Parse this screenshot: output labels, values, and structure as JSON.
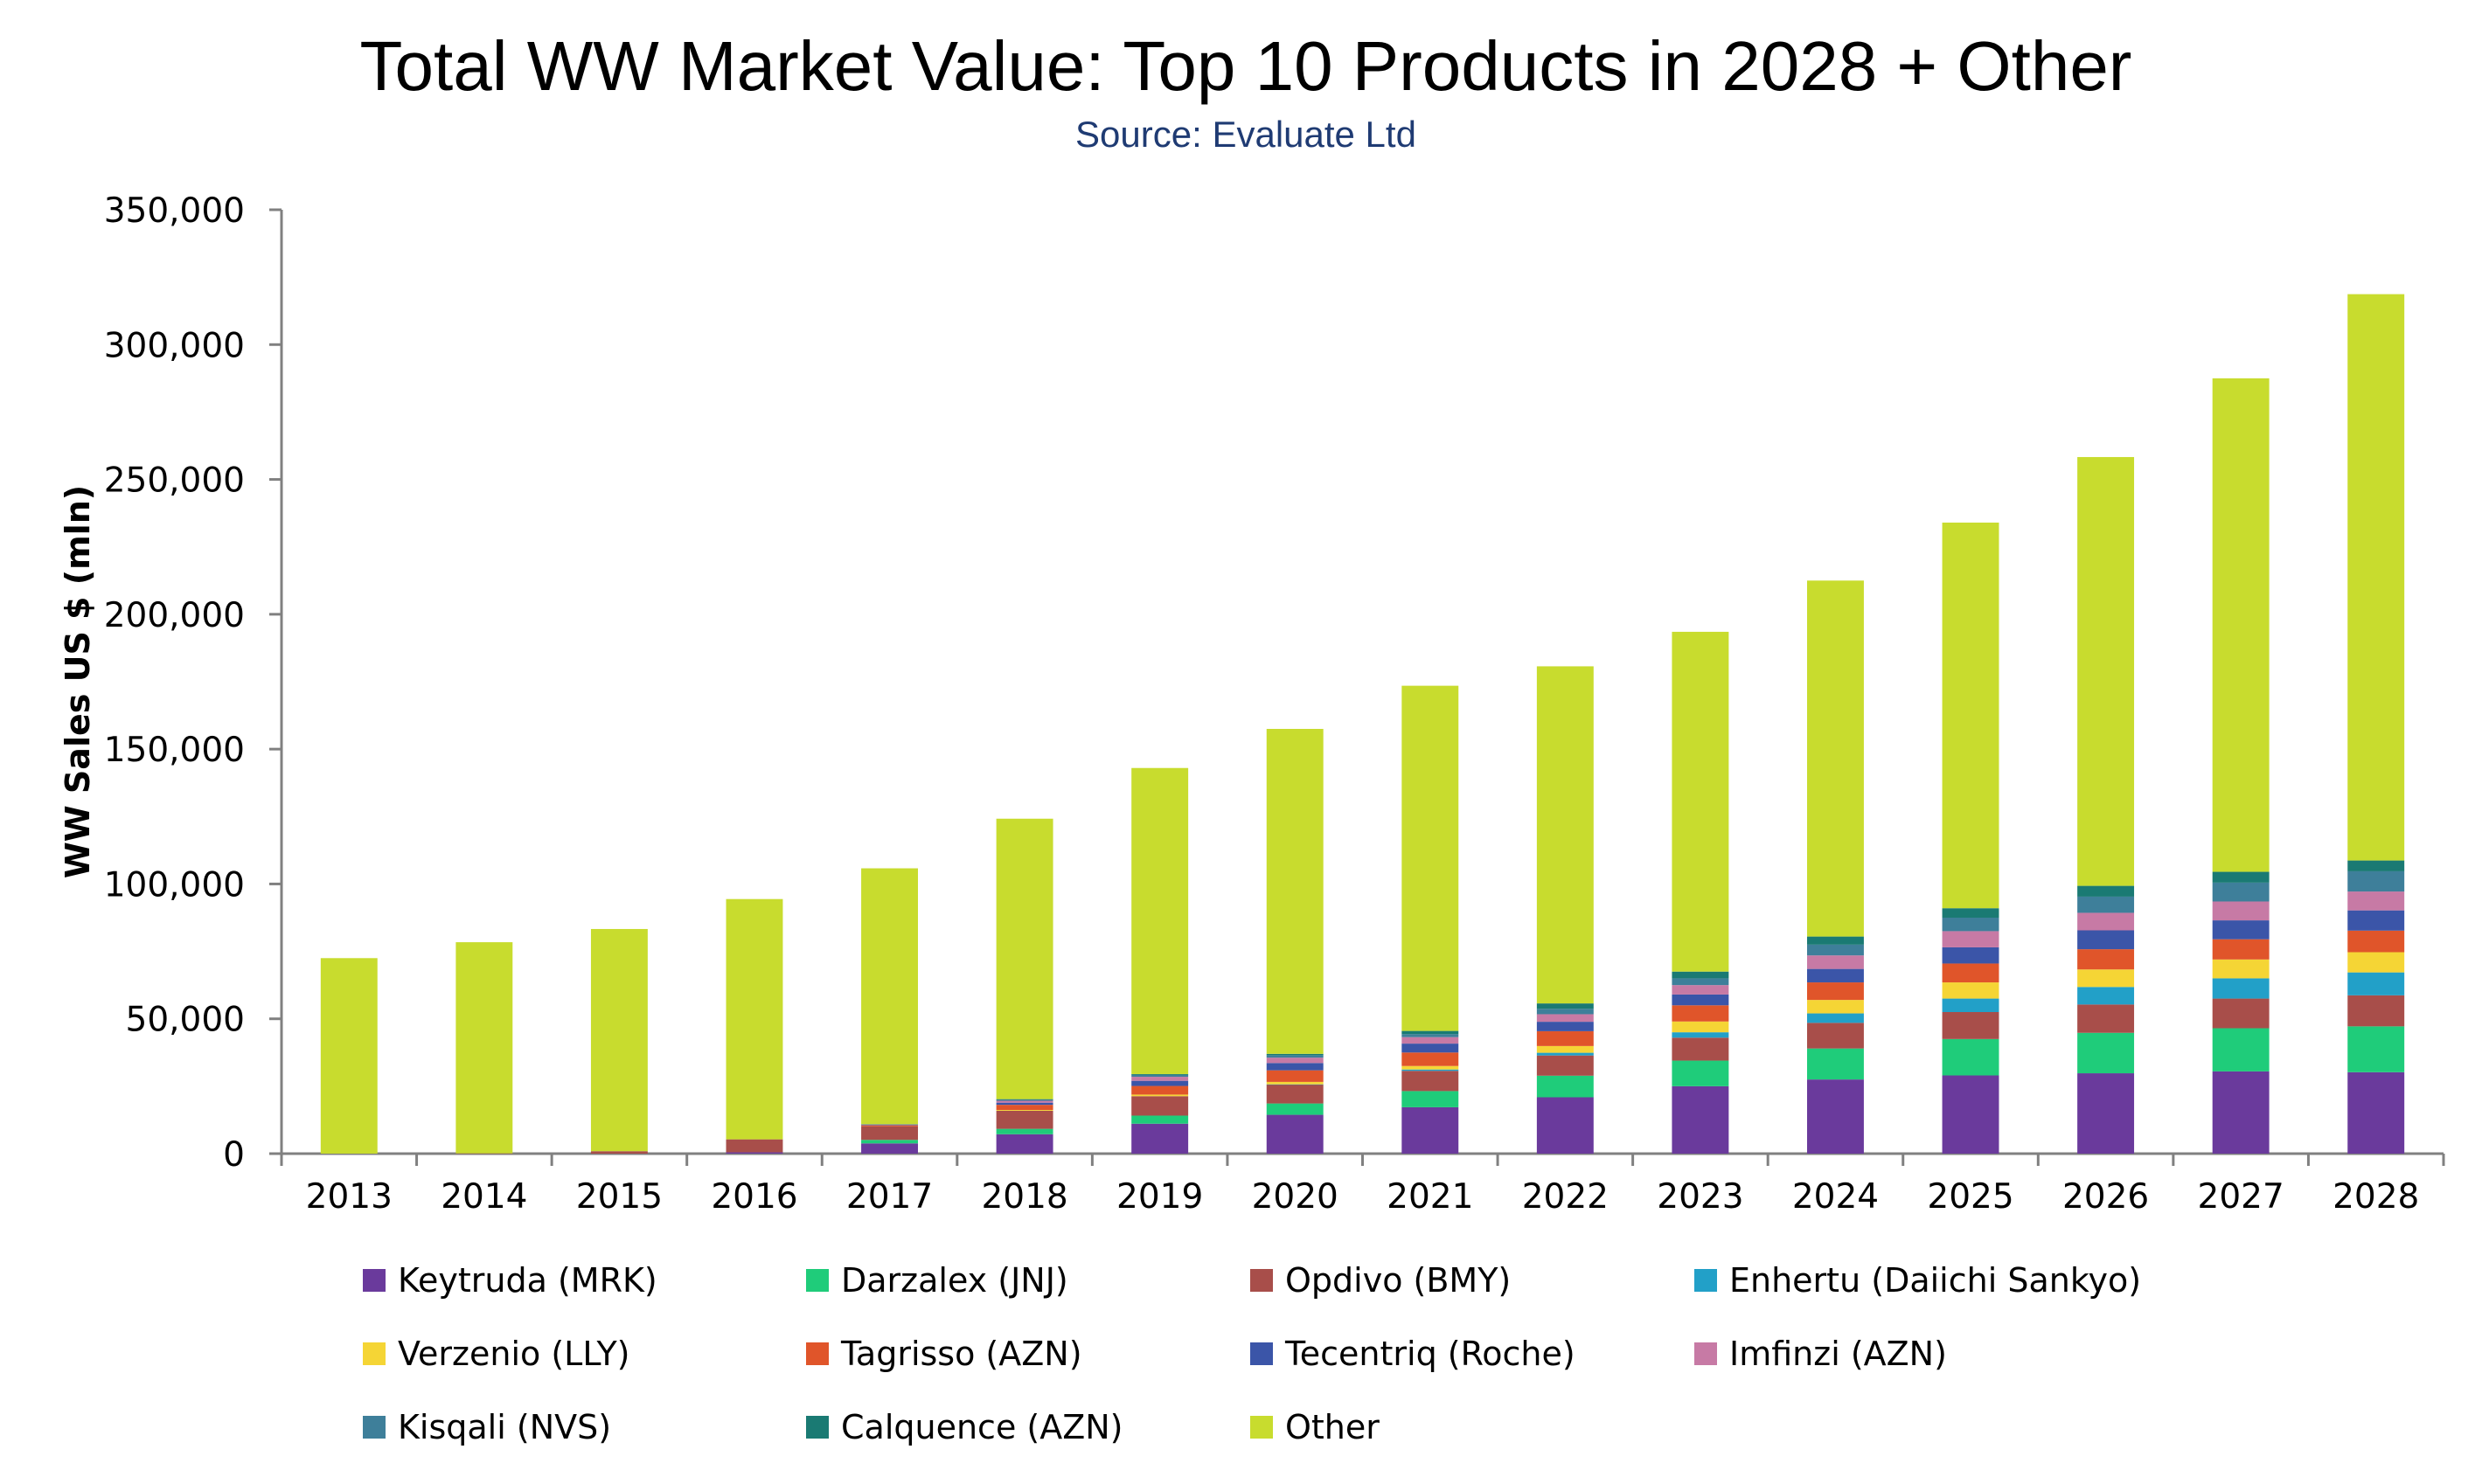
{
  "chart_data": {
    "type": "bar",
    "stacked": true,
    "title": "Total WW Market Value: Top 10 Products in 2028 + Other",
    "subtitle": "Source: Evaluate Ltd",
    "xlabel": "",
    "ylabel": "WW Sales US $ (mln)",
    "ylim": [
      0,
      350000
    ],
    "yticks": [
      "0",
      "50,000",
      "100,000",
      "150,000",
      "200,000",
      "250,000",
      "300,000",
      "350,000"
    ],
    "categories": [
      "2013",
      "2014",
      "2015",
      "2016",
      "2017",
      "2018",
      "2019",
      "2020",
      "2021",
      "2022",
      "2023",
      "2024",
      "2025",
      "2026",
      "2027",
      "2028"
    ],
    "series": [
      {
        "name": "Keytruda (MRK)",
        "color": "#6a3a9c",
        "values": [
          0,
          0,
          0,
          500,
          3800,
          7200,
          11100,
          14400,
          17200,
          20900,
          25000,
          27500,
          29000,
          29800,
          30500,
          30200
        ]
      },
      {
        "name": "Darzalex (JNJ)",
        "color": "#1fcc7a",
        "values": [
          0,
          0,
          0,
          0,
          1300,
          2000,
          3000,
          4200,
          6000,
          8000,
          9500,
          11500,
          13500,
          15000,
          16000,
          17000
        ]
      },
      {
        "name": "Opdivo (BMY)",
        "color": "#a84e4a",
        "values": [
          0,
          100,
          900,
          4800,
          5000,
          6700,
          7200,
          7000,
          7500,
          7500,
          8500,
          9500,
          10000,
          10500,
          11000,
          11500
        ]
      },
      {
        "name": "Enhertu (Daiichi Sankyo)",
        "color": "#22a0c8",
        "values": [
          0,
          0,
          0,
          0,
          0,
          0,
          0,
          100,
          500,
          1000,
          2000,
          3500,
          5000,
          6500,
          7500,
          8500
        ]
      },
      {
        "name": "Verzenio (LLY)",
        "color": "#f5d535",
        "values": [
          0,
          0,
          0,
          0,
          0,
          300,
          600,
          900,
          1300,
          2500,
          4000,
          5000,
          6000,
          6500,
          7000,
          7500
        ]
      },
      {
        "name": "Tagrisso (AZN)",
        "color": "#e0552a",
        "values": [
          0,
          0,
          0,
          0,
          400,
          1900,
          3200,
          4300,
          5000,
          5500,
          6000,
          6500,
          7000,
          7500,
          7500,
          8000
        ]
      },
      {
        "name": "Tecentriq (Roche)",
        "color": "#3b55a8",
        "values": [
          0,
          0,
          0,
          0,
          200,
          800,
          1900,
          2700,
          3300,
          3500,
          4000,
          5000,
          6000,
          7000,
          7000,
          7500
        ]
      },
      {
        "name": "Imfinzi (AZN)",
        "color": "#c77aa5",
        "values": [
          0,
          0,
          0,
          0,
          100,
          700,
          1500,
          2000,
          2400,
          2800,
          3500,
          5000,
          6000,
          6500,
          7000,
          7000
        ]
      },
      {
        "name": "Kisqali (NVS)",
        "color": "#3e7f9a",
        "values": [
          0,
          0,
          0,
          0,
          100,
          500,
          700,
          900,
          1100,
          2000,
          2500,
          4000,
          5000,
          6000,
          7000,
          7500
        ]
      },
      {
        "name": "Calquence (AZN)",
        "color": "#1a7a73",
        "values": [
          0,
          0,
          0,
          0,
          0,
          100,
          300,
          500,
          1200,
          2000,
          2500,
          3000,
          3500,
          4000,
          4000,
          4000
        ]
      },
      {
        "name": "Other",
        "color": "#c8dc2e",
        "values": [
          72500,
          78300,
          82400,
          89100,
          94900,
          104000,
          113500,
          120500,
          128000,
          125000,
          126000,
          132000,
          143000,
          159000,
          183000,
          210000
        ]
      }
    ]
  }
}
